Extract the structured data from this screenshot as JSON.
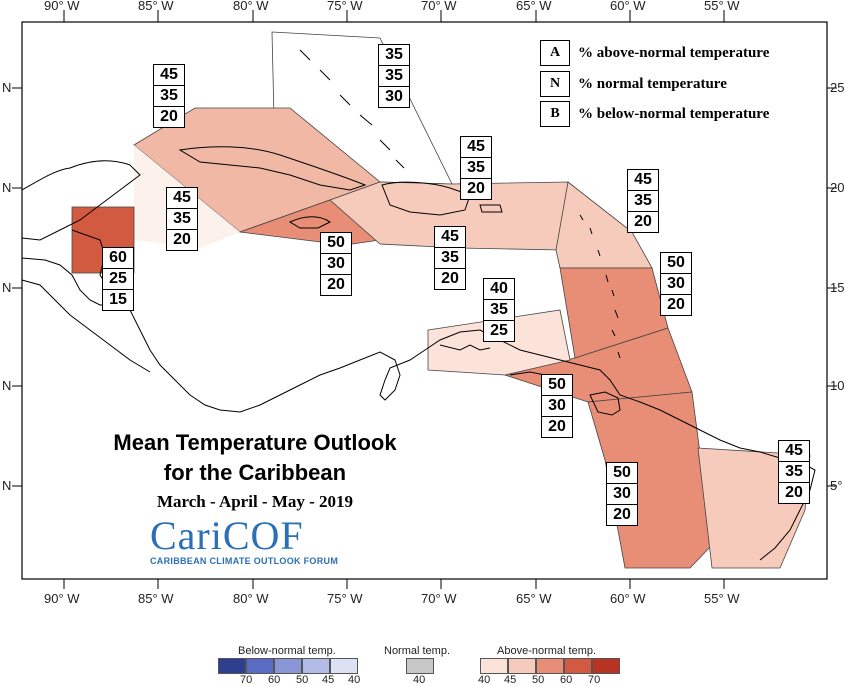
{
  "axis": {
    "lon_labels": [
      "90° W",
      "85° W",
      "80° W",
      "75° W",
      "70° W",
      "65° W",
      "60° W",
      "55° W"
    ],
    "lat_left": [
      "N",
      "N",
      "N",
      "N",
      "N"
    ],
    "lat_right": [
      "25",
      "20",
      "15",
      "10",
      "5°"
    ]
  },
  "key": {
    "rows": [
      {
        "letter": "A",
        "text": "% above-normal temperature"
      },
      {
        "letter": "N",
        "text": "% normal temperature"
      },
      {
        "letter": "B",
        "text": "% below-normal temperature"
      }
    ]
  },
  "regions": [
    {
      "name": "bahamas",
      "A": "35",
      "N": "35",
      "B": "30",
      "color": "none"
    },
    {
      "name": "cuba",
      "A": "45",
      "N": "35",
      "B": "20",
      "color": "#f1b8a6"
    },
    {
      "name": "cayman",
      "A": "45",
      "N": "35",
      "B": "20",
      "color": "#f1b8a6"
    },
    {
      "name": "belize",
      "A": "60",
      "N": "25",
      "B": "15",
      "color": "#d25a40"
    },
    {
      "name": "jamaica",
      "A": "50",
      "N": "30",
      "B": "20",
      "color": "#e88e76"
    },
    {
      "name": "hispaniola-pr",
      "A": "45",
      "N": "35",
      "B": "20",
      "color": "#f1b8a6"
    },
    {
      "name": "south-of-hispaniola",
      "A": "45",
      "N": "35",
      "B": "20",
      "color": "#f1b8a6"
    },
    {
      "name": "leeward",
      "A": "45",
      "N": "35",
      "B": "20",
      "color": "#f1b8a6"
    },
    {
      "name": "windward",
      "A": "50",
      "N": "30",
      "B": "20",
      "color": "#e88e76"
    },
    {
      "name": "abc-islands",
      "A": "40",
      "N": "35",
      "B": "25",
      "color": "#fbe3da"
    },
    {
      "name": "trinidad",
      "A": "50",
      "N": "30",
      "B": "20",
      "color": "#e88e76"
    },
    {
      "name": "guyana",
      "A": "50",
      "N": "30",
      "B": "20",
      "color": "#e88e76"
    },
    {
      "name": "suriname-fg",
      "A": "45",
      "N": "35",
      "B": "20",
      "color": "#f7cbbc"
    }
  ],
  "title": {
    "line1": "Mean Temperature Outlook",
    "line2": "for the Caribbean",
    "season": "March - April - May - 2019",
    "logo": "CariCOF",
    "logo_sub": "CARIBBEAN CLIMATE OUTLOOK FORUM"
  },
  "colorbar": {
    "below_label": "Below-normal temp.",
    "normal_label": "Normal temp.",
    "above_label": "Above-normal temp.",
    "below_ticks": [
      "70",
      "60",
      "50",
      "45",
      "40"
    ],
    "normal_ticks": [
      "40"
    ],
    "above_ticks": [
      "40",
      "45",
      "50",
      "60",
      "70"
    ],
    "below_colors": [
      "#2f3f8f",
      "#5a6dc4",
      "#8896d6",
      "#b3bce6",
      "#dde1f4"
    ],
    "normal_color": "#c8c8c8",
    "above_colors": [
      "#fbe3da",
      "#f7cbbc",
      "#e88e76",
      "#d25a40",
      "#b83322"
    ]
  }
}
